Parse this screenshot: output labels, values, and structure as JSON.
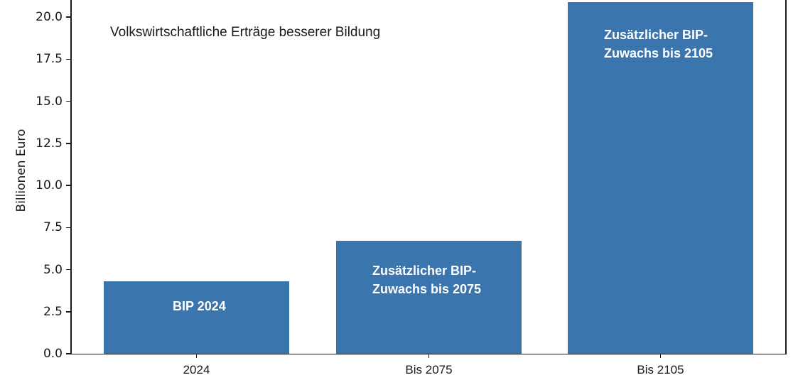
{
  "chart_data": {
    "type": "bar",
    "title": "",
    "annotation": "Volkswirtschaftliche Erträge besserer Bildung",
    "xlabel": "",
    "ylabel": "Billionen Euro",
    "categories": [
      "2024",
      "Bis 2075",
      "Bis 2105"
    ],
    "values": [
      4.3,
      6.7,
      20.9
    ],
    "bar_labels": [
      [
        "BIP 2024"
      ],
      [
        "Zusätzlicher BIP-",
        "Zuwachs bis 2075"
      ],
      [
        "Zusätzlicher BIP-",
        "Zuwachs bis 2105"
      ]
    ],
    "ylim": [
      0,
      21
    ],
    "yticks": [
      "0.0",
      "2.5",
      "5.0",
      "7.5",
      "10.0",
      "12.5",
      "15.0",
      "17.5",
      "20.0"
    ],
    "grid": false,
    "legend": null,
    "bar_color": "#3b75ad"
  }
}
